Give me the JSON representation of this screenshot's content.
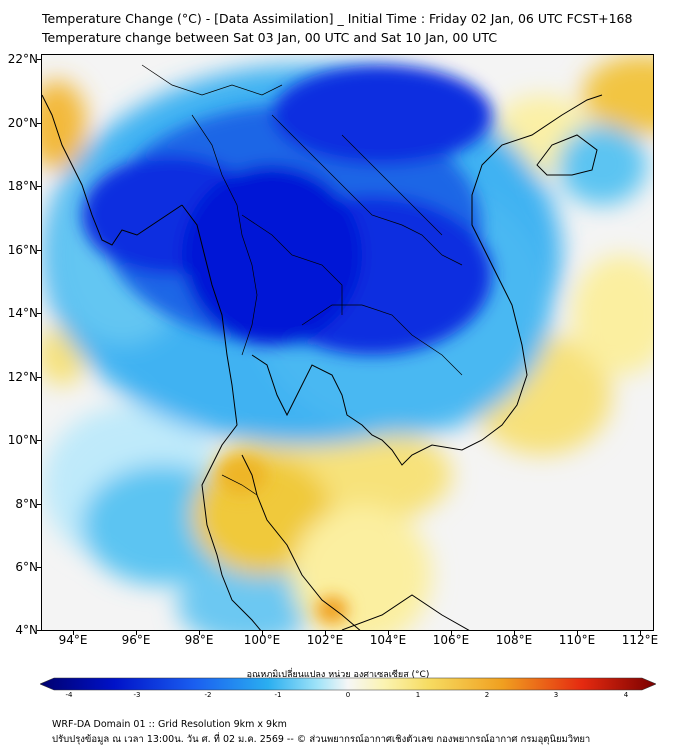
{
  "header": {
    "title_line1": "Temperature Change (°C) - [Data Assimilation] _ Initial Time : Friday 02 Jan, 06 UTC FCST+168",
    "title_line2": "Temperature change between Sat 03 Jan, 00 UTC and Sat 10 Jan, 00 UTC"
  },
  "map": {
    "lat_labels": [
      "22°N",
      "20°N",
      "18°N",
      "16°N",
      "14°N",
      "12°N",
      "10°N",
      "8°N",
      "6°N",
      "4°N"
    ],
    "lon_labels": [
      "94°E",
      "96°E",
      "98°E",
      "100°E",
      "102°E",
      "104°E",
      "106°E",
      "108°E",
      "110°E",
      "112°E"
    ],
    "lat_range": [
      4,
      22.2
    ],
    "lon_range": [
      93.0,
      112.4
    ],
    "field_description_colors": {
      "strong_cooling": "#0015d8",
      "cooling": "#1e9bf0",
      "mild_cooling": "#8fdcf6",
      "neutral": "#f4f4f4",
      "mild_warming": "#fbf0a6",
      "warming": "#f0cc3c",
      "strong_warming": "#f0a020"
    }
  },
  "colorbar": {
    "title": "อุณหภูมิเปลี่ยนแปลง หน่วย องศาเซลเซียส (°C)",
    "tick_labels": [
      "-4",
      "-3",
      "-2",
      "-1",
      "0",
      "1",
      "2",
      "3",
      "4"
    ],
    "min": -4,
    "max": 4
  },
  "footer": {
    "line1": "WRF-DA Domain 01 :: Grid Resolution 9km x 9km",
    "line2": "ปรับปรุงข้อมูล ณ เวลา 13:00น. วัน ศ. ที่ 02 ม.ค. 2569 -- © ส่วนพยากรณ์อากาศเชิงตัวเลข กองพยากรณ์อากาศ กรมอุตุนิยมวิทยา"
  }
}
